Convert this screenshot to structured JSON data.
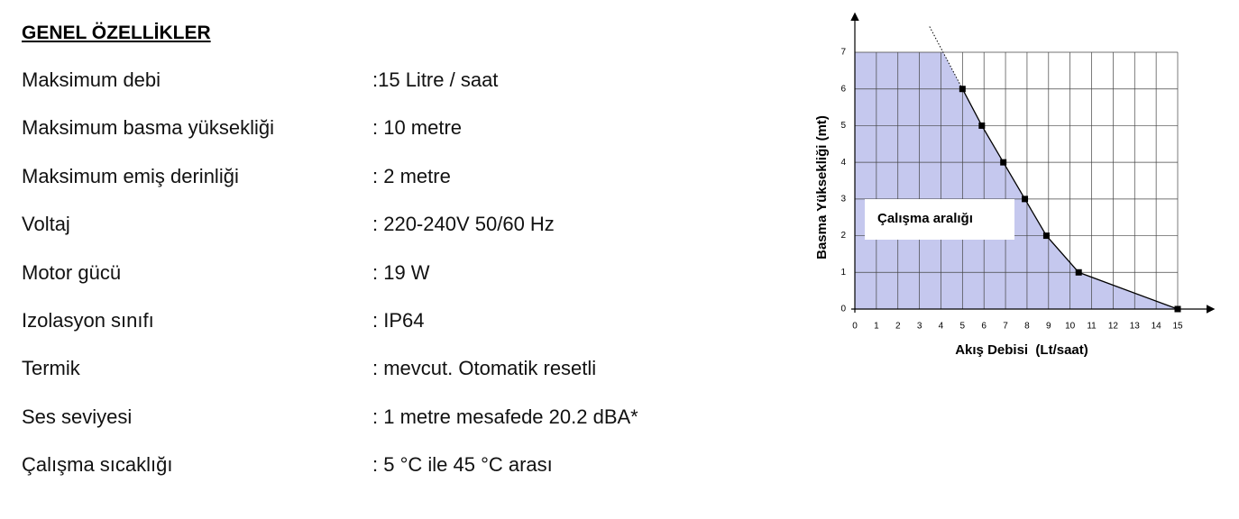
{
  "document": {
    "title": "GENEL ÖZELLİKLER",
    "rows": [
      [
        "Maksimum debi",
        ":15 Litre / saat"
      ],
      [
        "Maksimum basma yüksekliği",
        ": 10 metre"
      ],
      [
        "Maksimum emiş derinliği",
        ": 2 metre"
      ],
      [
        "Voltaj",
        ": 220-240V 50/60 Hz"
      ],
      [
        "Motor gücü",
        ": 19 W"
      ],
      [
        "Izolasyon sınıfı",
        ": IP64"
      ],
      [
        "Termik",
        ": mevcut. Otomatik resetli"
      ],
      [
        "Ses seviyesi",
        ": 1 metre mesafede 20.2 dBA*"
      ],
      [
        "Çalışma sıcaklığı",
        ": 5 °C ile 45 °C arası"
      ]
    ]
  },
  "chart_data": {
    "type": "line",
    "x_label": "Akış Debisi  (Lt/saat)",
    "y_label": "Basma Yüksekliği (mt)",
    "annotation": "Çalışma aralığı",
    "x": [
      5,
      5.9,
      6.9,
      7.9,
      8.9,
      10.4,
      15
    ],
    "values": [
      6,
      5,
      4,
      3,
      2,
      1,
      0
    ],
    "color": "#000000",
    "area_color": "#c5c8ee",
    "xlim": [
      0,
      15
    ],
    "ylim": [
      0,
      7
    ],
    "xticks": [
      0,
      1,
      2,
      3,
      4,
      5,
      6,
      7,
      8,
      9,
      10,
      11,
      12,
      13,
      14,
      15
    ],
    "yticks": [
      0,
      1,
      2,
      3,
      4,
      5,
      6,
      7
    ],
    "grid": true
  }
}
